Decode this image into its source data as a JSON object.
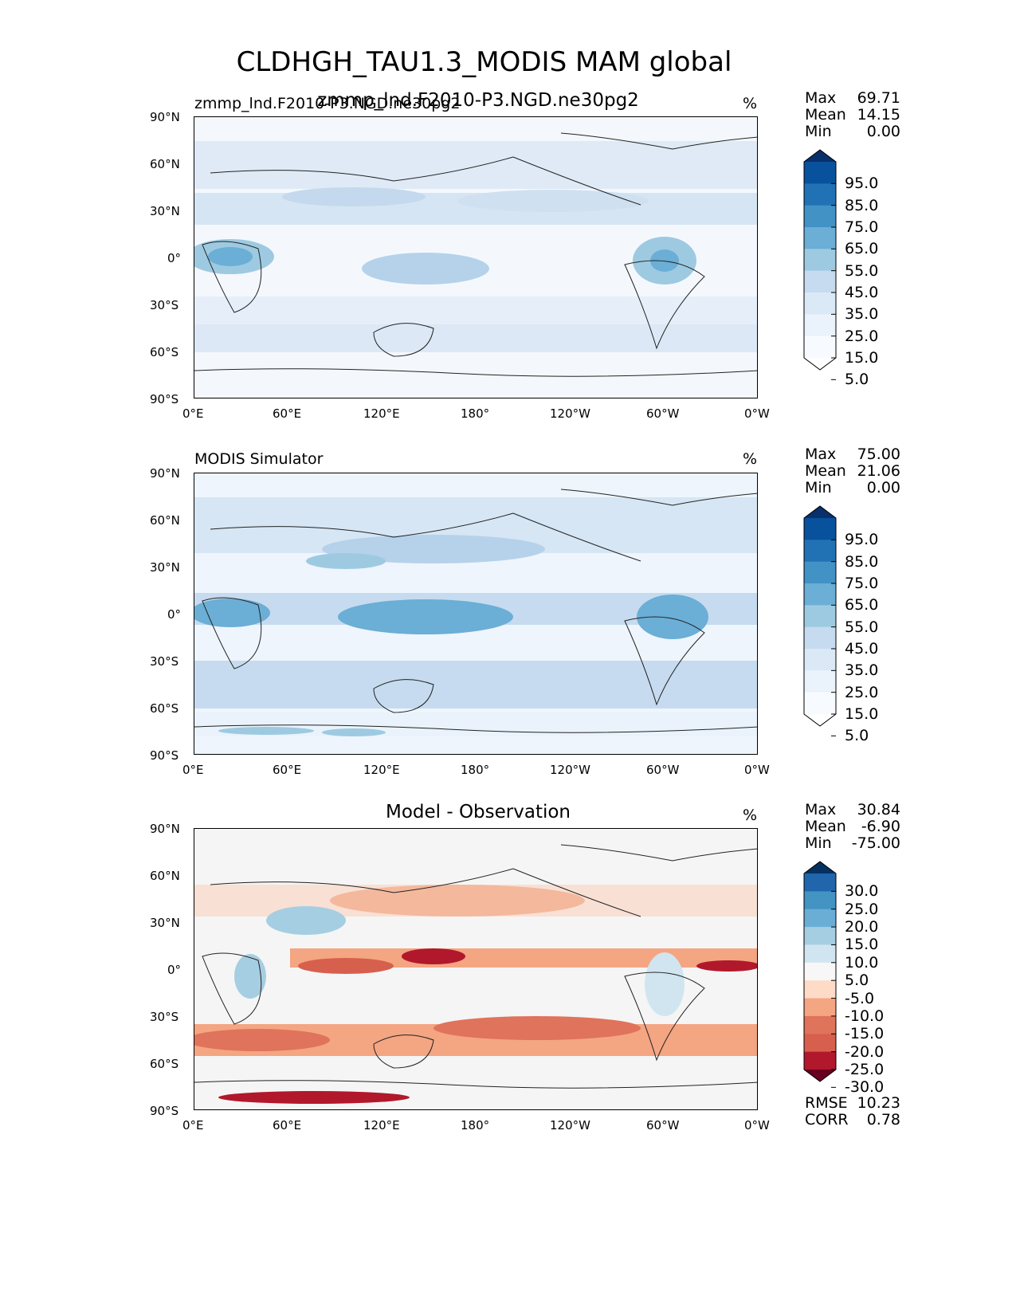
{
  "figure_title": "CLDHGH_TAU1.3_MODIS MAM global",
  "lat_ticks": [
    "90°N",
    "60°N",
    "30°N",
    "0°",
    "30°S",
    "60°S",
    "90°S"
  ],
  "lon_ticks": [
    "0°E",
    "60°E",
    "120°E",
    "180°",
    "120°W",
    "60°W",
    "0°W"
  ],
  "panels": [
    {
      "left_title": "zmmp_lnd.F2010-P3.NGD.ne30pg2",
      "center_title": "zmmp_lnd.F2010-P3.NGD.ne30pg2",
      "unit": "%",
      "stats": [
        {
          "label": "Max",
          "value": "69.71"
        },
        {
          "label": "Mean",
          "value": "14.15"
        },
        {
          "label": "Min",
          "value": "0.00"
        }
      ],
      "colorbar": {
        "labels": [
          "95.0",
          "85.0",
          "75.0",
          "65.0",
          "55.0",
          "45.0",
          "35.0",
          "25.0",
          "15.0",
          "5.0"
        ],
        "colors": [
          "#08306b",
          "#08519c",
          "#2171b5",
          "#4292c6",
          "#6baed6",
          "#9ecae1",
          "#c6dbef",
          "#dbe9f6",
          "#eaf3fb",
          "#f7fbff",
          "#ffffff"
        ]
      }
    },
    {
      "left_title": "MODIS Simulator",
      "center_title": "",
      "unit": "%",
      "stats": [
        {
          "label": "Max",
          "value": "75.00"
        },
        {
          "label": "Mean",
          "value": "21.06"
        },
        {
          "label": "Min",
          "value": "0.00"
        }
      ],
      "colorbar": {
        "labels": [
          "95.0",
          "85.0",
          "75.0",
          "65.0",
          "55.0",
          "45.0",
          "35.0",
          "25.0",
          "15.0",
          "5.0"
        ],
        "colors": [
          "#08306b",
          "#08519c",
          "#2171b5",
          "#4292c6",
          "#6baed6",
          "#9ecae1",
          "#c6dbef",
          "#dbe9f6",
          "#eaf3fb",
          "#f7fbff",
          "#ffffff"
        ]
      }
    },
    {
      "left_title": "",
      "center_title": "Model - Observation",
      "unit": "%",
      "stats": [
        {
          "label": "Max",
          "value": "30.84"
        },
        {
          "label": "Mean",
          "value": "-6.90"
        },
        {
          "label": "Min",
          "value": "-75.00"
        }
      ],
      "colorbar": {
        "labels": [
          "30.0",
          "25.0",
          "20.0",
          "15.0",
          "10.0",
          "5.0",
          "-5.0",
          "-10.0",
          "-15.0",
          "-20.0",
          "-25.0",
          "-30.0"
        ],
        "colors": [
          "#053061",
          "#2166ac",
          "#4393c3",
          "#6aaed6",
          "#a6cee3",
          "#d1e5f0",
          "#f7f7f7",
          "#fddbc7",
          "#f4a582",
          "#e0735b",
          "#d6604d",
          "#b2182b",
          "#67001f"
        ]
      },
      "footer_stats": [
        {
          "label": "RMSE",
          "value": "10.23"
        },
        {
          "label": "CORR",
          "value": "0.78"
        }
      ]
    }
  ]
}
